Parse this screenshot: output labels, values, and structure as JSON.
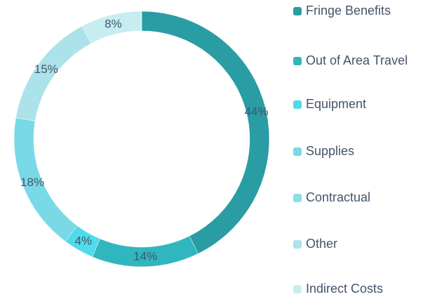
{
  "chart_data": {
    "type": "donut",
    "categories": [
      "Fringe Benefits",
      "Out of Area Travel",
      "Equipment",
      "Supplies",
      "Contractual",
      "Other",
      "Indirect Costs"
    ],
    "values": [
      44,
      14,
      4,
      18,
      0,
      15,
      8
    ],
    "value_labels": [
      "44%",
      "14%",
      "4%",
      "18%",
      null,
      "15%",
      "8%"
    ],
    "colors": [
      "#2a9ca4",
      "#2fb6bf",
      "#4fdbea",
      "#79d9e6",
      "#8fdde8",
      "#ace2ea",
      "#c8edf1"
    ],
    "legend": "right"
  }
}
